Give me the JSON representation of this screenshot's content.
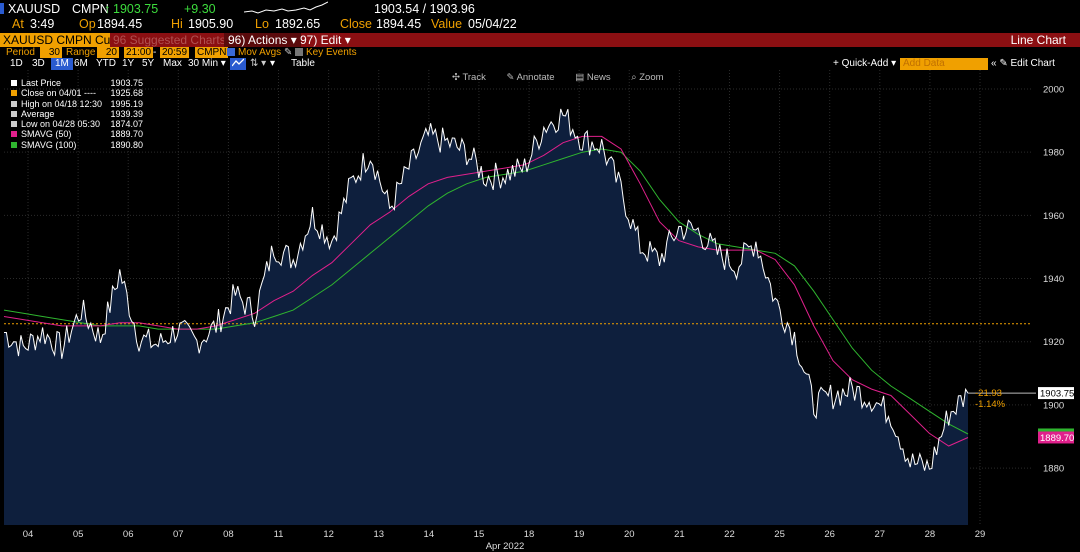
{
  "header": {
    "symbol": "XAUUSD",
    "source": "CMPN",
    "last": "1903.75",
    "change": "+9.30",
    "bidask": "1903.54 / 1903.96",
    "at_label": "At",
    "at_time": "3:49",
    "op_label": "Op",
    "op": "1894.45",
    "hi_label": "Hi",
    "hi": "1905.90",
    "lo_label": "Lo",
    "lo": "1892.65",
    "close_label": "Close",
    "close": "1894.45",
    "value_label": "Value",
    "value_date": "05/04/22"
  },
  "menubar": {
    "ticker_box": "XAUUSD CMPN Curncy",
    "suggested": "96 Suggested Charts",
    "actions": "96) Actions ▾",
    "edit": "97) Edit ▾",
    "chart_type": "Line Chart"
  },
  "options": {
    "period_label": "Period",
    "period_value": "30",
    "range_label": "Range",
    "range_value": "20",
    "time_start": "21:00",
    "time_end": "20:59",
    "source_box": "CMPN",
    "mov_avgs": "Mov Avgs",
    "key_events": "Key Events"
  },
  "timeframes": [
    "1D",
    "3D",
    "1M",
    "6M",
    "YTD",
    "1Y",
    "5Y",
    "Max"
  ],
  "selected_timeframe": "1M",
  "interval": "30 Min",
  "table_label": "Table",
  "quick_add": "+ Quick-Add ▾",
  "add_data_placeholder": "Add Data",
  "edit_chart": "« ✎ Edit Chart",
  "tools": [
    "Track",
    "Annotate",
    "News",
    "Zoom"
  ],
  "legend": [
    {
      "label": "Last Price",
      "value": "1903.75",
      "color": "#ffffff"
    },
    {
      "label": "Close on 04/01 ----",
      "value": "1925.68",
      "color": "#f0a000"
    },
    {
      "label": "High on 04/18 12:30",
      "value": "1995.19",
      "color": "#cccccc"
    },
    {
      "label": "Average",
      "value": "1939.39",
      "color": "#cccccc"
    },
    {
      "label": "Low on 04/28 05:30",
      "value": "1874.07",
      "color": "#cccccc"
    },
    {
      "label": "SMAVG (50)",
      "value": "1889.70",
      "color": "#e0208c"
    },
    {
      "label": "SMAVG (100)",
      "value": "1890.80",
      "color": "#2fb52f"
    }
  ],
  "price_tag": "1903.75",
  "change_abs": "-21.93",
  "change_pct": "-1.14%",
  "smavg_tag": "1889.70",
  "colors": {
    "accent": "#f0a000",
    "red_bar": "#8b0f12",
    "area_fill": "#0e1f3d",
    "smavg50": "#e0208c",
    "smavg100": "#2fb52f"
  },
  "chart_data": {
    "type": "line",
    "x_month_label": "Apr 2022",
    "x_ticks": [
      "04",
      "05",
      "06",
      "07",
      "08",
      "11",
      "12",
      "13",
      "14",
      "15",
      "18",
      "19",
      "20",
      "21",
      "22",
      "25",
      "26",
      "27",
      "28",
      "29"
    ],
    "y_ticks": [
      1880,
      1900,
      1920,
      1940,
      1960,
      1980,
      2000
    ],
    "ylim": [
      1862,
      2006
    ],
    "reference_line": 1925.68,
    "series": [
      {
        "name": "Last Price",
        "values": [
          1923,
          1918,
          1923,
          1918,
          1930,
          1921,
          1942,
          1921,
          1919,
          1924,
          1920,
          1925,
          1935,
          1929,
          1950,
          1946,
          1960,
          1952,
          1970,
          1980,
          1962,
          1975,
          1985,
          1983,
          1980,
          1972,
          1973,
          1975,
          1988,
          1992,
          1984,
          1982,
          1968,
          1950,
          1946,
          1956,
          1955,
          1948,
          1944,
          1952,
          1933,
          1922,
          1900,
          1903,
          1905,
          1902,
          1897,
          1882,
          1880,
          1897,
          1903.75
        ]
      },
      {
        "name": "SMAVG (50)",
        "values": [
          1928,
          1927,
          1926,
          1925,
          1925,
          1925,
          1926,
          1926,
          1925,
          1924,
          1924,
          1925,
          1927,
          1929,
          1933,
          1936,
          1941,
          1945,
          1951,
          1957,
          1961,
          1966,
          1970,
          1972,
          1973,
          1974,
          1975,
          1976,
          1979,
          1983,
          1985,
          1985,
          1981,
          1970,
          1958,
          1952,
          1950,
          1949,
          1949,
          1949,
          1946,
          1938,
          1925,
          1914,
          1908,
          1905,
          1903,
          1897,
          1891,
          1887,
          1889.7
        ]
      },
      {
        "name": "SMAVG (100)",
        "values": [
          1930,
          1929,
          1928,
          1927,
          1926,
          1925,
          1925,
          1925,
          1924,
          1924,
          1924,
          1924,
          1925,
          1926,
          1928,
          1930,
          1934,
          1938,
          1943,
          1948,
          1953,
          1958,
          1963,
          1967,
          1970,
          1972,
          1973,
          1974,
          1976,
          1978,
          1980,
          1981,
          1980,
          1974,
          1965,
          1958,
          1954,
          1951,
          1950,
          1949,
          1948,
          1944,
          1936,
          1927,
          1918,
          1911,
          1906,
          1902,
          1898,
          1894,
          1890.8
        ]
      }
    ]
  }
}
